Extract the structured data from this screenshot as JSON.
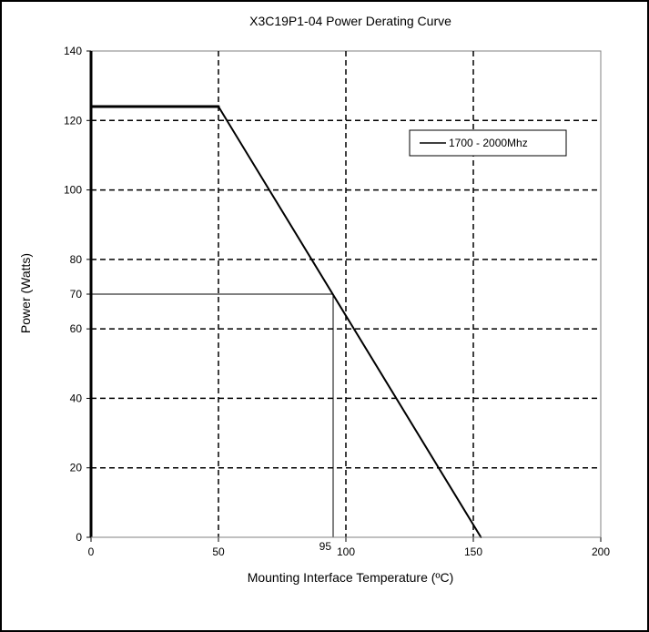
{
  "chart_data": {
    "type": "line",
    "title": "X3C19P1-04 Power Derating Curve",
    "xlabel": "Mounting Interface Temperature (ºC)",
    "ylabel": "Power (Watts)",
    "xlim": [
      0,
      200
    ],
    "ylim": [
      0,
      140
    ],
    "x_ticks": [
      0,
      50,
      100,
      150,
      200
    ],
    "y_ticks": [
      0,
      20,
      40,
      60,
      70,
      80,
      100,
      120,
      140
    ],
    "x_gridlines": [
      50,
      100,
      150
    ],
    "y_gridlines": [
      20,
      40,
      60,
      80,
      100,
      120
    ],
    "grid": true,
    "legend_position": "top-right",
    "series": [
      {
        "name": "1700 - 2000Mhz",
        "x": [
          0,
          50,
          153
        ],
        "y": [
          124,
          124,
          0
        ]
      }
    ],
    "annotations": [
      {
        "label": "95",
        "x": 95,
        "y": 70
      }
    ]
  }
}
